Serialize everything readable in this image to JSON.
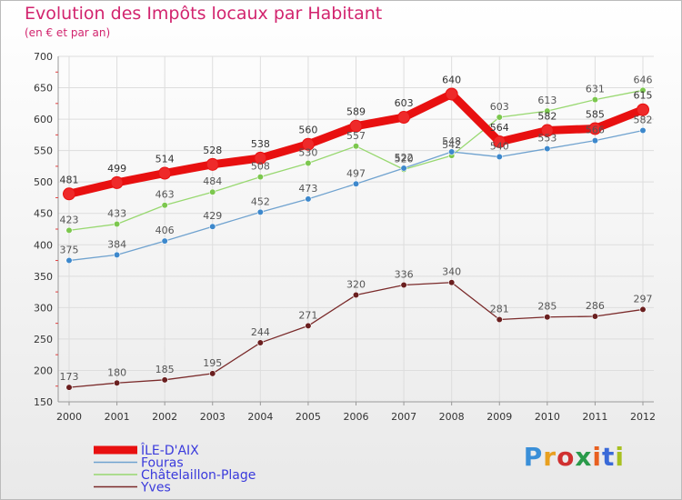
{
  "title": "Evolution des Impôts locaux par Habitant",
  "subtitle": "(en € et par an)",
  "logo_text": "Proxiti",
  "colors": {
    "title": "#d2246e",
    "grid": "#dddddd",
    "axis": "#999999",
    "legend_text": "#3a3adc"
  },
  "chart_data": {
    "type": "line",
    "x": [
      "2000",
      "2001",
      "2002",
      "2003",
      "2004",
      "2005",
      "2006",
      "2007",
      "2008",
      "2009",
      "2010",
      "2011",
      "2012"
    ],
    "ylim": [
      150,
      700
    ],
    "yticks": [
      150,
      200,
      250,
      300,
      350,
      400,
      450,
      500,
      550,
      600,
      650,
      700
    ],
    "grid": true,
    "legend_position": "bottom-left",
    "series": [
      {
        "name": "ÎLE-D'AIX",
        "color": "#e81010",
        "marker_color": "#ee2a2a",
        "label_color": "#333333",
        "values": [
          481,
          499,
          514,
          528,
          538,
          560,
          589,
          603,
          640,
          564,
          582,
          585,
          615
        ]
      },
      {
        "name": "Fouras",
        "color": "#6fa2cf",
        "marker_color": "#3d88cc",
        "label_color": "#555555",
        "values": [
          375,
          384,
          406,
          429,
          452,
          473,
          497,
          522,
          548,
          540,
          553,
          566,
          582
        ]
      },
      {
        "name": "Châtelaillon-Plage",
        "color": "#98d870",
        "marker_color": "#7cc74e",
        "label_color": "#555555",
        "values": [
          423,
          433,
          463,
          484,
          508,
          530,
          557,
          520,
          542,
          603,
          613,
          631,
          646
        ]
      },
      {
        "name": "Yves",
        "color": "#7a2a2a",
        "marker_color": "#6a1f1f",
        "label_color": "#555555",
        "values": [
          173,
          180,
          185,
          195,
          244,
          271,
          320,
          336,
          340,
          281,
          285,
          286,
          297
        ]
      }
    ]
  }
}
